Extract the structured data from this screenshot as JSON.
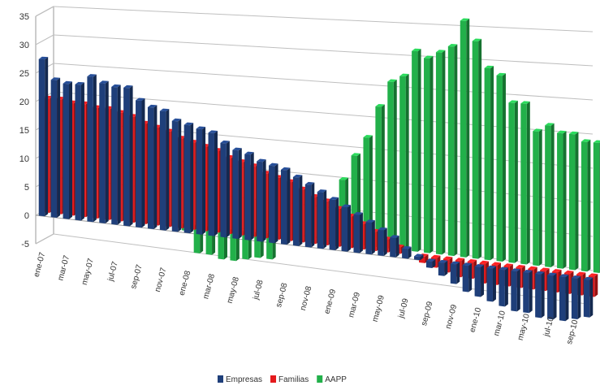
{
  "chart_data": {
    "type": "bar",
    "title": "",
    "xlabel": "",
    "ylabel": "",
    "ylim": [
      -5,
      35
    ],
    "y_ticks": [
      -5,
      0,
      5,
      10,
      15,
      20,
      25,
      30,
      35
    ],
    "grid": true,
    "legend_position": "bottom",
    "categories": [
      "ene-07",
      "feb-07",
      "mar-07",
      "abr-07",
      "may-07",
      "jun-07",
      "jul-07",
      "ago-07",
      "sep-07",
      "oct-07",
      "nov-07",
      "dic-07",
      "ene-08",
      "feb-08",
      "mar-08",
      "abr-08",
      "may-08",
      "jun-08",
      "jul-08",
      "ago-08",
      "sep-08",
      "oct-08",
      "nov-08",
      "dic-08",
      "ene-09",
      "feb-09",
      "mar-09",
      "abr-09",
      "may-09",
      "jun-09",
      "jul-09",
      "ago-09",
      "sep-09",
      "oct-09",
      "nov-09",
      "dic-09",
      "ene-10",
      "feb-10",
      "mar-10",
      "abr-10",
      "may-10",
      "jun-10",
      "jul-10",
      "ago-10",
      "sep-10",
      "oct-10"
    ],
    "shown_tick_labels": [
      "ene-07",
      "mar-07",
      "may-07",
      "jul-07",
      "sep-07",
      "nov-07",
      "ene-08",
      "mar-08",
      "may-08",
      "jul-08",
      "sep-08",
      "nov-08",
      "ene-09",
      "mar-09",
      "may-09",
      "jul-09",
      "sep-09",
      "nov-09",
      "ene-10",
      "mar-10",
      "may-10",
      "jul-10",
      "sep-10"
    ],
    "series": [
      {
        "name": "Empresas",
        "color": "#1f3f7a",
        "values": [
          27.5,
          24,
          23.5,
          23.5,
          25,
          24,
          23.5,
          23.5,
          21.5,
          20.5,
          20,
          18.5,
          18,
          17.5,
          17,
          15.5,
          14.5,
          14,
          13,
          12.5,
          12,
          11,
          10,
          9,
          8,
          7,
          6,
          5,
          4,
          3,
          1.5,
          0.5,
          -1,
          -2,
          -3,
          -4,
          -4.5,
          -5,
          -5.5,
          -6,
          -6,
          -6.5,
          -6.5,
          -6.5,
          -6,
          -5.5
        ]
      },
      {
        "name": "Familias",
        "color": "#e41a1c",
        "values": [
          20,
          20,
          19.5,
          19.5,
          19,
          19,
          18.5,
          18,
          17,
          16.5,
          16,
          15,
          14.5,
          14,
          13.5,
          12.5,
          12,
          11.5,
          10.5,
          10,
          9.5,
          8.5,
          7.5,
          7,
          6,
          5,
          4,
          3,
          2,
          1,
          0,
          -1,
          -1.5,
          -2,
          -2.5,
          -2.5,
          -3,
          -3,
          -3,
          -3,
          -3,
          -3,
          -3,
          -3,
          -3,
          -3
        ]
      },
      {
        "name": "AAPP",
        "color": "#22b04a",
        "values": [
          0,
          0,
          0,
          0,
          0,
          0,
          0,
          0,
          0,
          0,
          0,
          -1,
          -4.5,
          -4.5,
          -5,
          -5,
          -4.5,
          -4,
          -4,
          0,
          0,
          0,
          0,
          0,
          10,
          14,
          17,
          22,
          26,
          27,
          31,
          30,
          31,
          32,
          36,
          33,
          29,
          28,
          24,
          24,
          20,
          21,
          20,
          20,
          19,
          19
        ]
      }
    ]
  }
}
